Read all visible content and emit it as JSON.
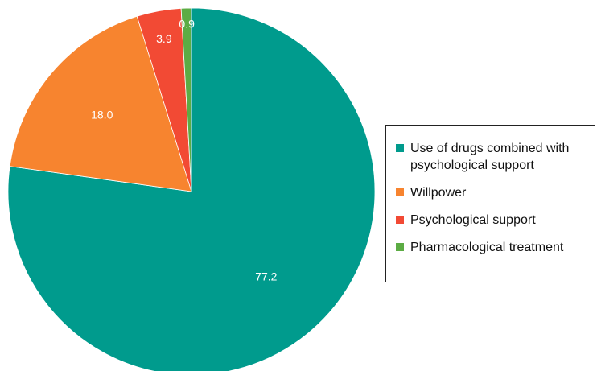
{
  "chart_data": {
    "type": "pie",
    "categories": [
      "Use of drugs combined with psychological support",
      "Willpower",
      "Psychological support",
      "Pharmacological treatment"
    ],
    "values": [
      77.2,
      18.0,
      3.9,
      0.9
    ],
    "value_labels": [
      "77.2",
      "18.0",
      "3.9",
      "0.9"
    ],
    "colors": [
      "#009b8d",
      "#f7842f",
      "#f24a34",
      "#5cac44"
    ],
    "legend_position": "right",
    "start_angle": "12 o'clock",
    "direction": "clockwise"
  },
  "legend": {
    "items": [
      {
        "label": "Use of drugs combined with psychological support",
        "color": "#009b8d"
      },
      {
        "label": "Willpower",
        "color": "#f7842f"
      },
      {
        "label": "Psychological support",
        "color": "#f24a34"
      },
      {
        "label": "Pharmacological treatment",
        "color": "#5cac44"
      }
    ]
  }
}
